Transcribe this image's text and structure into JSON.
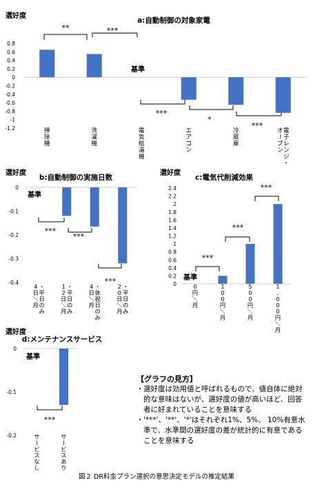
{
  "chart_data": [
    {
      "id": "a",
      "type": "bar",
      "title": "a:自動制御の対象家電",
      "ylabel": "選好度",
      "ylim": [
        -1.2,
        0.8
      ],
      "yticks": [
        "0.8",
        "0.6",
        "0.4",
        "0.2",
        "0",
        "-0.2",
        "-0.4",
        "-0.6",
        "-0.8",
        "-1",
        "-1.2"
      ],
      "categories": [
        "掃除機",
        "洗濯機",
        "電気給湯機",
        "エアコン",
        "冷蔵庫",
        "電子レンジ・オーブン"
      ],
      "values": [
        0.65,
        0.55,
        0,
        -0.53,
        -0.65,
        -0.84
      ],
      "baseline_label": "基準",
      "significance": [
        "**",
        "***",
        "***",
        "*",
        "***"
      ]
    },
    {
      "id": "b",
      "type": "bar",
      "title": "b:自動制御の実施日数",
      "ylabel": "選好度",
      "ylim": [
        -0.4,
        0
      ],
      "yticks": [
        "0",
        "-0.1",
        "-0.2",
        "-0.3",
        "-0.4"
      ],
      "categories": [
        "4日／月・平日のみ",
        "12日／月・平日のみ",
        "4日／月・休祝日のみ",
        "20日／月・平日のみ"
      ],
      "values": [
        0,
        -0.12,
        -0.165,
        -0.32
      ],
      "baseline_label": "基準",
      "significance": [
        "***",
        "***",
        "***"
      ]
    },
    {
      "id": "c",
      "type": "bar",
      "title": "c:電気代削減効果",
      "ylabel": "選好度",
      "ylim": [
        0,
        2.4
      ],
      "yticks": [
        "2.4",
        "2.2",
        "2",
        "1.8",
        "1.6",
        "1.4",
        "1.2",
        "1",
        "0.8",
        "0.6",
        "0.4",
        "0.2",
        "0"
      ],
      "categories": [
        "0円／月",
        "100円／月",
        "500円／月",
        "1,000円／月"
      ],
      "values": [
        0,
        0.2,
        1.0,
        2.0
      ],
      "baseline_label": "基準",
      "significance": [
        "***",
        "***",
        "***"
      ]
    },
    {
      "id": "d",
      "type": "bar",
      "title": "d:メンテナンスサービス",
      "ylabel": "選好度",
      "ylim": [
        -0.2,
        0
      ],
      "yticks": [
        "0",
        "-0.1",
        "-0.2"
      ],
      "categories": [
        "サービスなし",
        "サービスあり"
      ],
      "values": [
        0,
        -0.13
      ],
      "baseline_label": "基準",
      "significance": [
        "***"
      ]
    }
  ],
  "colors": {
    "bar": "#4472c4",
    "text": "#000000",
    "axis": "#d9d9d9"
  },
  "notes": {
    "title": "【グラフの見方】",
    "items": [
      "選好度は効用値と呼ばれるもので、値自体に絶対的な意味はないが、選好度の値が高いほど、回答者に好まれていることを意味する",
      "'***'、'**'、'*'はそれぞれ1%、5%、 10%有意水準で、水準間の選好度の差が統計的に有意であることを意味する"
    ]
  },
  "caption": "図２ DR料金プラン選択の意思決定モデルの推定結果"
}
